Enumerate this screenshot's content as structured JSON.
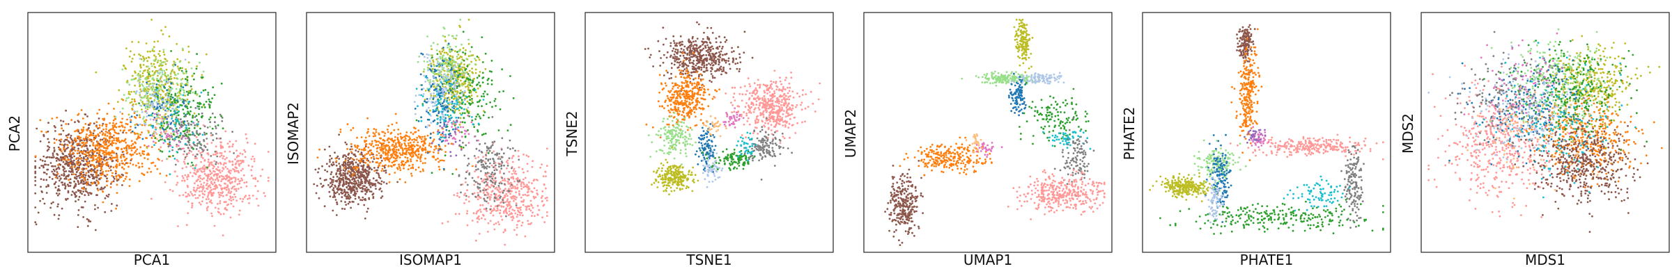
{
  "palette": {
    "orange": "#ff7f0e",
    "brown": "#8c564b",
    "olive": "#bcbd22",
    "pink_light": "#ff9896",
    "green": "#2ca02c",
    "blue": "#1f77b4",
    "light_green": "#98df8a",
    "light_blue": "#aec7e8",
    "gray": "#7f7f7f",
    "cyan": "#17becf",
    "magenta": "#e377c2",
    "light_orange": "#ffbb78",
    "purple": "#9467bd",
    "red": "#d62728"
  },
  "chart_data": [
    {
      "type": "scatter",
      "method": "PCA",
      "xlabel": "PCA1",
      "ylabel": "PCA2",
      "xticks": [],
      "yticks": [],
      "grid": false,
      "legend": "none",
      "xlim": [
        0,
        1
      ],
      "ylim": [
        0,
        1
      ],
      "clusters": [
        {
          "color": "brown",
          "center": [
            0.18,
            0.35
          ],
          "spread": [
            0.09,
            0.09
          ],
          "n": 1300
        },
        {
          "color": "orange",
          "center": [
            0.32,
            0.43
          ],
          "spread": [
            0.1,
            0.08
          ],
          "n": 1100
        },
        {
          "color": "pink_light",
          "center": [
            0.78,
            0.3
          ],
          "spread": [
            0.09,
            0.08
          ],
          "n": 1000
        },
        {
          "color": "olive",
          "center": [
            0.52,
            0.72
          ],
          "spread": [
            0.07,
            0.09
          ],
          "n": 700
        },
        {
          "color": "light_green",
          "center": [
            0.54,
            0.68
          ],
          "spread": [
            0.07,
            0.08
          ],
          "n": 350
        },
        {
          "color": "green",
          "center": [
            0.63,
            0.58
          ],
          "spread": [
            0.07,
            0.09
          ],
          "n": 400
        },
        {
          "color": "blue",
          "center": [
            0.55,
            0.6
          ],
          "spread": [
            0.06,
            0.08
          ],
          "n": 150
        },
        {
          "color": "light_blue",
          "center": [
            0.52,
            0.64
          ],
          "spread": [
            0.06,
            0.08
          ],
          "n": 150
        },
        {
          "color": "gray",
          "center": [
            0.69,
            0.48
          ],
          "spread": [
            0.06,
            0.06
          ],
          "n": 250
        },
        {
          "color": "cyan",
          "center": [
            0.6,
            0.52
          ],
          "spread": [
            0.06,
            0.07
          ],
          "n": 100
        },
        {
          "color": "magenta",
          "center": [
            0.58,
            0.5
          ],
          "spread": [
            0.05,
            0.05
          ],
          "n": 70
        },
        {
          "color": "light_orange",
          "center": [
            0.55,
            0.52
          ],
          "spread": [
            0.04,
            0.04
          ],
          "n": 50
        }
      ]
    },
    {
      "type": "scatter",
      "method": "ISOMAP",
      "xlabel": "ISOMAP1",
      "ylabel": "ISOMAP2",
      "xticks": [],
      "yticks": [],
      "grid": false,
      "legend": "none",
      "xlim": [
        0,
        1
      ],
      "ylim": [
        0,
        1
      ],
      "clusters": [
        {
          "color": "brown",
          "center": [
            0.17,
            0.3
          ],
          "spread": [
            0.06,
            0.06
          ],
          "n": 1100
        },
        {
          "color": "orange",
          "center": [
            0.36,
            0.42
          ],
          "spread": [
            0.1,
            0.05
          ],
          "n": 1000
        },
        {
          "color": "pink_light",
          "center": [
            0.82,
            0.22
          ],
          "spread": [
            0.09,
            0.08
          ],
          "n": 900
        },
        {
          "color": "gray",
          "center": [
            0.75,
            0.33
          ],
          "spread": [
            0.06,
            0.07
          ],
          "n": 350
        },
        {
          "color": "olive",
          "center": [
            0.6,
            0.75
          ],
          "spread": [
            0.05,
            0.08
          ],
          "n": 700
        },
        {
          "color": "light_green",
          "center": [
            0.56,
            0.8
          ],
          "spread": [
            0.05,
            0.07
          ],
          "n": 300
        },
        {
          "color": "green",
          "center": [
            0.66,
            0.66
          ],
          "spread": [
            0.07,
            0.1
          ],
          "n": 350
        },
        {
          "color": "blue",
          "center": [
            0.54,
            0.66
          ],
          "spread": [
            0.04,
            0.1
          ],
          "n": 300
        },
        {
          "color": "light_blue",
          "center": [
            0.55,
            0.7
          ],
          "spread": [
            0.05,
            0.09
          ],
          "n": 250
        },
        {
          "color": "cyan",
          "center": [
            0.56,
            0.6
          ],
          "spread": [
            0.05,
            0.07
          ],
          "n": 150
        },
        {
          "color": "magenta",
          "center": [
            0.62,
            0.5
          ],
          "spread": [
            0.04,
            0.04
          ],
          "n": 70
        },
        {
          "color": "purple",
          "center": [
            0.58,
            0.48
          ],
          "spread": [
            0.04,
            0.04
          ],
          "n": 50
        }
      ]
    },
    {
      "type": "scatter",
      "method": "TSNE",
      "xlabel": "TSNE1",
      "ylabel": "TSNE2",
      "xticks": [],
      "yticks": [],
      "grid": false,
      "legend": "none",
      "xlim": [
        0,
        1
      ],
      "ylim": [
        0,
        1
      ],
      "clusters": [
        {
          "color": "brown",
          "center": [
            0.46,
            0.83
          ],
          "spread": [
            0.08,
            0.05
          ],
          "n": 900
        },
        {
          "color": "orange",
          "center": [
            0.4,
            0.65
          ],
          "spread": [
            0.05,
            0.06
          ],
          "n": 700
        },
        {
          "color": "pink_light",
          "center": [
            0.76,
            0.62
          ],
          "spread": [
            0.07,
            0.06
          ],
          "n": 900
        },
        {
          "color": "gray",
          "center": [
            0.74,
            0.44
          ],
          "spread": [
            0.04,
            0.04
          ],
          "n": 250
        },
        {
          "color": "light_green",
          "center": [
            0.35,
            0.47
          ],
          "spread": [
            0.04,
            0.04
          ],
          "n": 300
        },
        {
          "color": "olive",
          "center": [
            0.35,
            0.3
          ],
          "spread": [
            0.04,
            0.03
          ],
          "n": 450
        },
        {
          "color": "blue",
          "center": [
            0.49,
            0.43
          ],
          "spread": [
            0.02,
            0.05
          ],
          "n": 200
        },
        {
          "color": "light_blue",
          "center": [
            0.51,
            0.34
          ],
          "spread": [
            0.02,
            0.03
          ],
          "n": 120
        },
        {
          "color": "green",
          "center": [
            0.6,
            0.38
          ],
          "spread": [
            0.04,
            0.02
          ],
          "n": 200
        },
        {
          "color": "magenta",
          "center": [
            0.6,
            0.56
          ],
          "spread": [
            0.02,
            0.02
          ],
          "n": 80
        },
        {
          "color": "light_orange",
          "center": [
            0.52,
            0.53
          ],
          "spread": [
            0.02,
            0.02
          ],
          "n": 60
        },
        {
          "color": "cyan",
          "center": [
            0.66,
            0.44
          ],
          "spread": [
            0.02,
            0.03
          ],
          "n": 70
        }
      ]
    },
    {
      "type": "scatter",
      "method": "UMAP",
      "xlabel": "UMAP1",
      "ylabel": "UMAP2",
      "xticks": [],
      "yticks": [],
      "grid": false,
      "legend": "none",
      "xlim": [
        0,
        1
      ],
      "ylim": [
        0,
        1
      ],
      "clusters": [
        {
          "color": "brown",
          "center": [
            0.14,
            0.18
          ],
          "spread": [
            0.03,
            0.07
          ],
          "n": 550
        },
        {
          "color": "orange",
          "center": [
            0.33,
            0.39
          ],
          "spread": [
            0.08,
            0.03
          ],
          "n": 500
        },
        {
          "color": "olive",
          "center": [
            0.65,
            0.91
          ],
          "spread": [
            0.015,
            0.05
          ],
          "n": 300
        },
        {
          "color": "light_green",
          "center": [
            0.58,
            0.74
          ],
          "spread": [
            0.06,
            0.012
          ],
          "n": 350
        },
        {
          "color": "light_blue",
          "center": [
            0.73,
            0.74
          ],
          "spread": [
            0.05,
            0.012
          ],
          "n": 200
        },
        {
          "color": "blue",
          "center": [
            0.63,
            0.66
          ],
          "spread": [
            0.015,
            0.04
          ],
          "n": 200
        },
        {
          "color": "green",
          "center": [
            0.79,
            0.57
          ],
          "spread": [
            0.06,
            0.05
          ],
          "n": 250
        },
        {
          "color": "cyan",
          "center": [
            0.83,
            0.47
          ],
          "spread": [
            0.04,
            0.02
          ],
          "n": 100
        },
        {
          "color": "gray",
          "center": [
            0.88,
            0.38
          ],
          "spread": [
            0.03,
            0.06
          ],
          "n": 200
        },
        {
          "color": "pink_light",
          "center": [
            0.82,
            0.23
          ],
          "spread": [
            0.09,
            0.04
          ],
          "n": 700
        },
        {
          "color": "magenta",
          "center": [
            0.49,
            0.43
          ],
          "spread": [
            0.02,
            0.015
          ],
          "n": 60
        },
        {
          "color": "light_orange",
          "center": [
            0.45,
            0.45
          ],
          "spread": [
            0.015,
            0.02
          ],
          "n": 50
        }
      ]
    },
    {
      "type": "scatter",
      "method": "PHATE",
      "xlabel": "PHATE1",
      "ylabel": "PHATE2",
      "xticks": [],
      "yticks": [],
      "grid": false,
      "legend": "none",
      "xlim": [
        0,
        1
      ],
      "ylim": [
        0,
        1
      ],
      "clusters": [
        {
          "color": "brown",
          "center": [
            0.41,
            0.9
          ],
          "spread": [
            0.015,
            0.04
          ],
          "n": 300
        },
        {
          "color": "orange",
          "center": [
            0.42,
            0.67
          ],
          "spread": [
            0.02,
            0.1
          ],
          "n": 500
        },
        {
          "color": "pink_light",
          "center": [
            0.7,
            0.44
          ],
          "spread": [
            0.12,
            0.02
          ],
          "n": 500
        },
        {
          "color": "gray",
          "center": [
            0.87,
            0.27
          ],
          "spread": [
            0.02,
            0.08
          ],
          "n": 300
        },
        {
          "color": "cyan",
          "center": [
            0.72,
            0.22
          ],
          "spread": [
            0.06,
            0.03
          ],
          "n": 150
        },
        {
          "color": "green",
          "center": [
            0.55,
            0.12
          ],
          "spread": [
            0.2,
            0.03
          ],
          "n": 500
        },
        {
          "color": "olive",
          "center": [
            0.15,
            0.26
          ],
          "spread": [
            0.05,
            0.02
          ],
          "n": 500
        },
        {
          "color": "light_green",
          "center": [
            0.29,
            0.36
          ],
          "spread": [
            0.04,
            0.04
          ],
          "n": 300
        },
        {
          "color": "blue",
          "center": [
            0.3,
            0.3
          ],
          "spread": [
            0.02,
            0.06
          ],
          "n": 250
        },
        {
          "color": "light_blue",
          "center": [
            0.28,
            0.2
          ],
          "spread": [
            0.015,
            0.05
          ],
          "n": 150
        },
        {
          "color": "magenta",
          "center": [
            0.47,
            0.47
          ],
          "spread": [
            0.02,
            0.02
          ],
          "n": 80
        },
        {
          "color": "purple",
          "center": [
            0.45,
            0.49
          ],
          "spread": [
            0.02,
            0.02
          ],
          "n": 60
        }
      ]
    },
    {
      "type": "scatter",
      "method": "MDS",
      "xlabel": "MDS1",
      "ylabel": "MDS2",
      "xticks": [],
      "yticks": [],
      "grid": false,
      "legend": "none",
      "xlim": [
        0,
        1
      ],
      "ylim": [
        0,
        1
      ],
      "clusters": [
        {
          "color": "pink_light",
          "center": [
            0.3,
            0.45
          ],
          "spread": [
            0.11,
            0.12
          ],
          "n": 900
        },
        {
          "color": "orange",
          "center": [
            0.68,
            0.47
          ],
          "spread": [
            0.1,
            0.09
          ],
          "n": 800
        },
        {
          "color": "brown",
          "center": [
            0.66,
            0.36
          ],
          "spread": [
            0.1,
            0.09
          ],
          "n": 900
        },
        {
          "color": "olive",
          "center": [
            0.7,
            0.72
          ],
          "spread": [
            0.09,
            0.08
          ],
          "n": 600
        },
        {
          "color": "light_green",
          "center": [
            0.55,
            0.72
          ],
          "spread": [
            0.1,
            0.09
          ],
          "n": 500
        },
        {
          "color": "green",
          "center": [
            0.62,
            0.68
          ],
          "spread": [
            0.11,
            0.09
          ],
          "n": 500
        },
        {
          "color": "blue",
          "center": [
            0.45,
            0.62
          ],
          "spread": [
            0.12,
            0.1
          ],
          "n": 400
        },
        {
          "color": "light_blue",
          "center": [
            0.4,
            0.6
          ],
          "spread": [
            0.12,
            0.1
          ],
          "n": 300
        },
        {
          "color": "gray",
          "center": [
            0.35,
            0.65
          ],
          "spread": [
            0.1,
            0.1
          ],
          "n": 300
        },
        {
          "color": "cyan",
          "center": [
            0.55,
            0.55
          ],
          "spread": [
            0.12,
            0.12
          ],
          "n": 250
        },
        {
          "color": "magenta",
          "center": [
            0.4,
            0.7
          ],
          "spread": [
            0.1,
            0.08
          ],
          "n": 150
        },
        {
          "color": "light_orange",
          "center": [
            0.5,
            0.5
          ],
          "spread": [
            0.12,
            0.12
          ],
          "n": 150
        }
      ]
    }
  ]
}
